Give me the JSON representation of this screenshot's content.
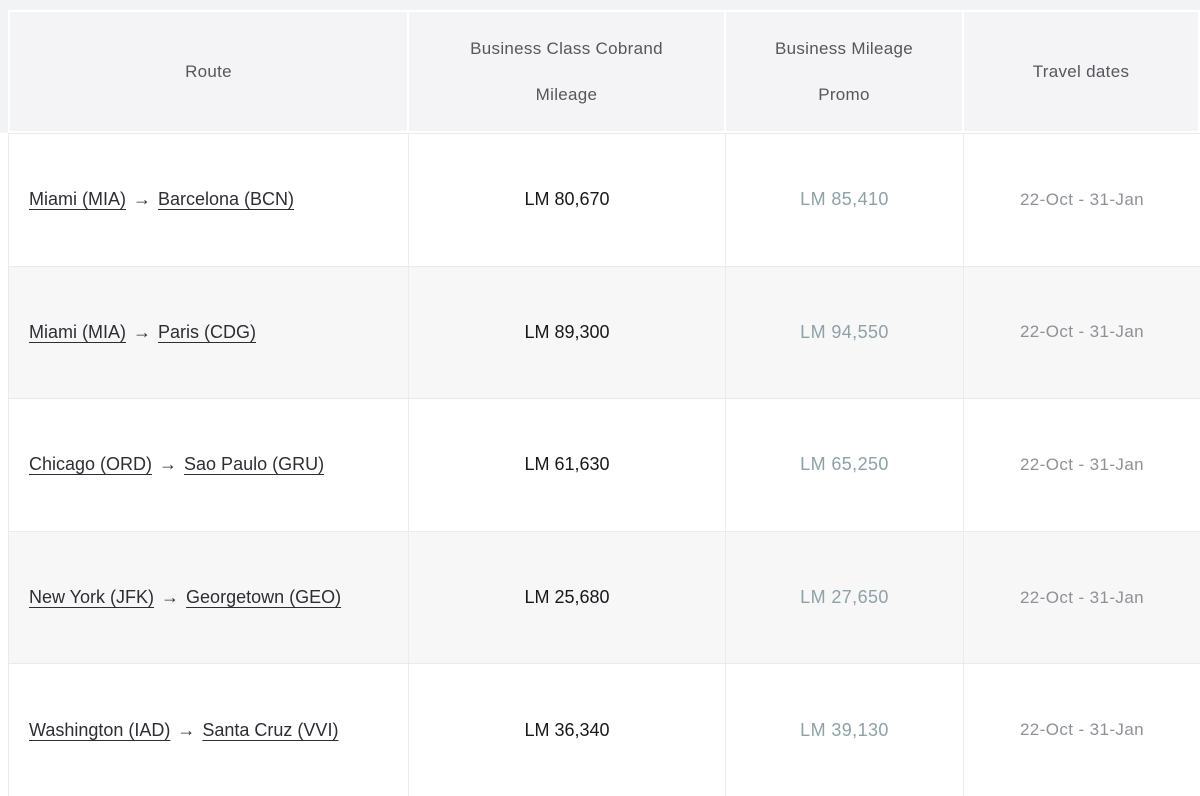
{
  "table": {
    "arrow": "→",
    "columns": [
      {
        "id": "route",
        "label": "Route",
        "lines": [
          "Route"
        ]
      },
      {
        "id": "cobrand",
        "label": "Business Class Cobrand Mileage",
        "lines": [
          "Business Class Cobrand",
          "Mileage"
        ]
      },
      {
        "id": "promo",
        "label": "Business Mileage Promo",
        "lines": [
          "Business Mileage",
          "Promo"
        ]
      },
      {
        "id": "dates",
        "label": "Travel dates",
        "lines": [
          "Travel dates"
        ]
      }
    ],
    "rows": [
      {
        "route": {
          "origin": "Miami (MIA)",
          "destination": "Barcelona (BCN)"
        },
        "cobrand_mileage": "LM 80,670",
        "promo_mileage": "LM 85,410",
        "travel_dates": "22-Oct - 31-Jan"
      },
      {
        "route": {
          "origin": "Miami (MIA)",
          "destination": "Paris (CDG)"
        },
        "cobrand_mileage": "LM 89,300",
        "promo_mileage": "LM 94,550",
        "travel_dates": "22-Oct - 31-Jan"
      },
      {
        "route": {
          "origin": "Chicago (ORD)",
          "destination": "Sao Paulo (GRU)"
        },
        "cobrand_mileage": "LM 61,630",
        "promo_mileage": "LM 65,250",
        "travel_dates": "22-Oct - 31-Jan"
      },
      {
        "route": {
          "origin": "New York (JFK)",
          "destination": "Georgetown (GEO)"
        },
        "cobrand_mileage": "LM 25,680",
        "promo_mileage": "LM 27,650",
        "travel_dates": "22-Oct - 31-Jan"
      },
      {
        "route": {
          "origin": "Washington (IAD)",
          "destination": "Santa Cruz (VVI)"
        },
        "cobrand_mileage": "LM 36,340",
        "promo_mileage": "LM 39,130",
        "travel_dates": "22-Oct - 31-Jan"
      }
    ]
  },
  "colors": {
    "header_band": "#f2f3f5",
    "header_cell_bg": "#f4f4f6",
    "alt_row_bg": "#f7f7f8",
    "border": "#e9eaeb",
    "route_link_text": "#2c2e33",
    "cobrand_value_text": "#17181b",
    "promo_value_text": "#8da1a7",
    "travel_dates_text": "#8e9196"
  }
}
